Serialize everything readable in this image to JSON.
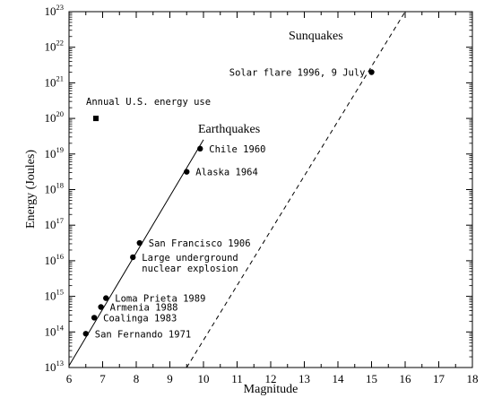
{
  "chart_data": {
    "type": "scatter",
    "xlabel": "Magnitude",
    "ylabel": "Energy (Joules)",
    "xlim": [
      6,
      18
    ],
    "ylim_exponent": [
      13,
      23
    ],
    "y_scale": "log",
    "x_ticks": [
      "6",
      "7",
      "8",
      "9",
      "10",
      "11",
      "12",
      "13",
      "14",
      "15",
      "16",
      "17",
      "18"
    ],
    "y_ticks": [
      {
        "base": "10",
        "exp": "13"
      },
      {
        "base": "10",
        "exp": "14"
      },
      {
        "base": "10",
        "exp": "15"
      },
      {
        "base": "10",
        "exp": "16"
      },
      {
        "base": "10",
        "exp": "17"
      },
      {
        "base": "10",
        "exp": "18"
      },
      {
        "base": "10",
        "exp": "19"
      },
      {
        "base": "10",
        "exp": "20"
      },
      {
        "base": "10",
        "exp": "21"
      },
      {
        "base": "10",
        "exp": "22"
      },
      {
        "base": "10",
        "exp": "23"
      }
    ],
    "series": [
      {
        "name": "Earthquakes",
        "line_style": "solid",
        "line": [
          [
            6,
            13.05
          ],
          [
            10,
            19.4
          ]
        ],
        "points": [
          {
            "label": "San Fernando 1971",
            "x": 6.5,
            "y": 13.95
          },
          {
            "label": "Coalinga 1983",
            "x": 6.75,
            "y": 14.4
          },
          {
            "label": "Armenia 1988",
            "x": 6.95,
            "y": 14.7
          },
          {
            "label": "Loma Prieta 1989",
            "x": 7.1,
            "y": 14.95
          },
          {
            "label": "Large underground",
            "label2": "nuclear explosion",
            "x": 7.9,
            "y": 16.1
          },
          {
            "label": "San Francisco 1906",
            "x": 8.1,
            "y": 16.5
          },
          {
            "label": "Alaska 1964",
            "x": 9.5,
            "y": 18.5
          },
          {
            "label": "Chile 1960",
            "x": 9.9,
            "y": 19.15
          }
        ]
      },
      {
        "name": "Sunquakes",
        "line_style": "dashed",
        "line": [
          [
            9.5,
            13
          ],
          [
            16,
            23
          ]
        ],
        "points": [
          {
            "label": "Solar flare 1996, 9 July",
            "x": 15,
            "y": 21.3
          }
        ]
      }
    ],
    "reference_point": {
      "label": "Annual U.S. energy use",
      "x": 6.8,
      "y": 20.0,
      "marker": "square"
    }
  }
}
